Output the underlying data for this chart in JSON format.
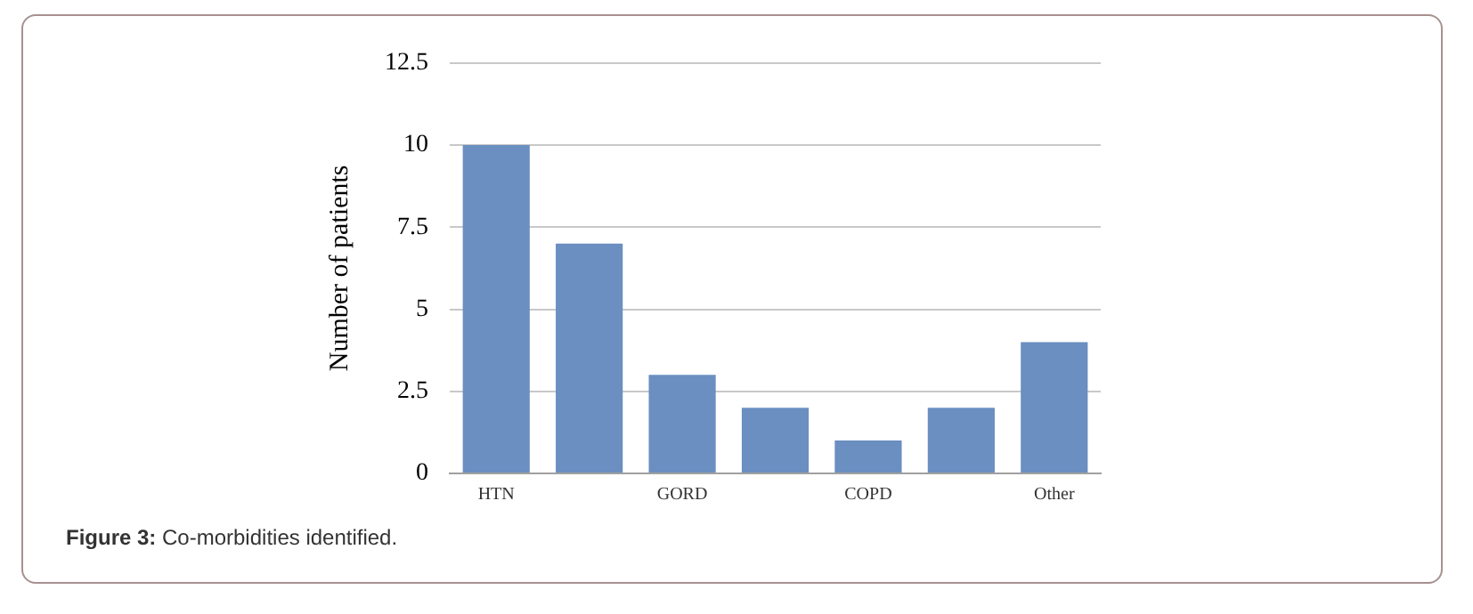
{
  "chart_data": {
    "type": "bar",
    "ylabel": "Number of patients",
    "categories": [
      "HTN",
      null,
      "GORD",
      null,
      "COPD",
      null,
      "Other"
    ],
    "values": [
      10,
      7,
      3,
      2,
      1,
      2,
      4
    ],
    "color": "#6a8fc0",
    "ylim": [
      0,
      12.5
    ],
    "yticks": [
      0,
      2.5,
      5,
      7.5,
      10,
      12.5
    ],
    "grid": "y",
    "annotations": [
      "Figure 3: Co-morbidities identified."
    ]
  }
}
